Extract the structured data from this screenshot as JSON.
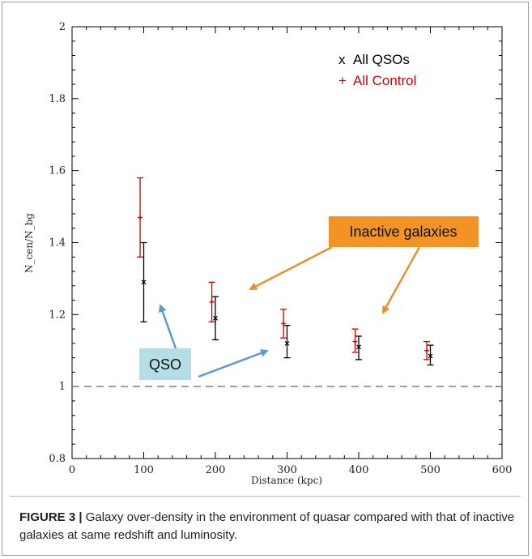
{
  "chart_data": {
    "type": "scatter",
    "xlabel": "Distance (kpc)",
    "ylabel": "N_cen/N_bg",
    "xlim": [
      0,
      600
    ],
    "ylim": [
      0.8,
      2
    ],
    "xticks": [
      0,
      100,
      200,
      300,
      400,
      500,
      600
    ],
    "yticks": [
      0.8,
      1,
      1.2,
      1.4,
      1.6,
      1.8,
      2
    ],
    "reference_line": 1.0,
    "series": [
      {
        "name": "All QSOs",
        "marker": "x",
        "color": "#000000",
        "points": [
          {
            "x": 100,
            "y": 1.29,
            "err_low": 1.18,
            "err_high": 1.4
          },
          {
            "x": 200,
            "y": 1.19,
            "err_low": 1.13,
            "err_high": 1.25
          },
          {
            "x": 300,
            "y": 1.12,
            "err_low": 1.08,
            "err_high": 1.17
          },
          {
            "x": 400,
            "y": 1.11,
            "err_low": 1.075,
            "err_high": 1.14
          },
          {
            "x": 500,
            "y": 1.085,
            "err_low": 1.06,
            "err_high": 1.115
          }
        ]
      },
      {
        "name": "All Control",
        "marker": "+",
        "color": "#d10000",
        "points": [
          {
            "x": 95,
            "y": 1.47,
            "err_low": 1.36,
            "err_high": 1.58
          },
          {
            "x": 195,
            "y": 1.235,
            "err_low": 1.18,
            "err_high": 1.29
          },
          {
            "x": 295,
            "y": 1.175,
            "err_low": 1.135,
            "err_high": 1.215
          },
          {
            "x": 395,
            "y": 1.125,
            "err_low": 1.095,
            "err_high": 1.16
          },
          {
            "x": 495,
            "y": 1.1,
            "err_low": 1.075,
            "err_high": 1.125
          }
        ]
      }
    ],
    "legend": [
      {
        "symbol": "x",
        "label": "All QSOs",
        "color": "#000000"
      },
      {
        "symbol": "+",
        "label": "All Control",
        "color": "#d10000"
      }
    ],
    "annotations": {
      "inactive": {
        "label": "Inactive galaxies",
        "fill": "#f39325",
        "arrow_color": "#e8902c"
      },
      "qso": {
        "label": "QSO",
        "fill": "#b4dde6",
        "arrow_color": "#5b9bd5"
      }
    }
  },
  "caption": {
    "label": "FIGURE 3 |",
    "text": " Galaxy over-density in the environment of quasar compared with that of inactive galaxies at same redshift and luminosity."
  }
}
